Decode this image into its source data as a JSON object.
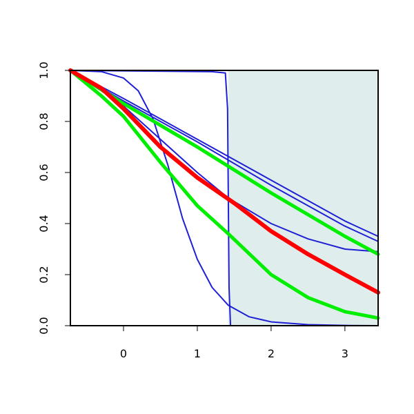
{
  "chart_data": {
    "type": "line",
    "title": "",
    "xlabel": "",
    "ylabel": "",
    "xlim": [
      -0.72,
      3.45
    ],
    "ylim": [
      0,
      1
    ],
    "grid": false,
    "x_ticks": [
      0,
      1,
      2,
      3
    ],
    "x_tick_labels": [
      "0",
      "1",
      "2",
      "3"
    ],
    "y_ticks": [
      0.0,
      0.2,
      0.4,
      0.6,
      0.8,
      1.0
    ],
    "y_tick_labels": [
      "0.0",
      "0.2",
      "0.4",
      "0.6",
      "0.8",
      "1.0"
    ],
    "shaded_region": {
      "x_from": 1.42,
      "x_to": 3.45,
      "color": "#e0eded"
    },
    "series": [
      {
        "color": "#1f1fd6",
        "style": "thin",
        "x": [
          -0.72,
          0.0,
          1.0,
          2.0,
          3.0,
          3.45
        ],
        "y": [
          1.0,
          0.89,
          0.73,
          0.57,
          0.41,
          0.35
        ]
      },
      {
        "color": "#1f1fd6",
        "style": "thin",
        "x": [
          -0.72,
          0.0,
          1.0,
          2.0,
          3.0,
          3.45
        ],
        "y": [
          1.0,
          0.88,
          0.72,
          0.55,
          0.39,
          0.33
        ]
      },
      {
        "color": "#1f1fd6",
        "style": "thin",
        "x": [
          -0.72,
          -0.4,
          0.0,
          0.5,
          1.0,
          1.42,
          2.0,
          2.5,
          3.0,
          3.45
        ],
        "y": [
          1.0,
          0.94,
          0.86,
          0.73,
          0.6,
          0.5,
          0.4,
          0.34,
          0.3,
          0.29
        ]
      },
      {
        "color": "#1f1fd6",
        "style": "thin",
        "x": [
          -0.72,
          -0.3,
          0.0,
          0.2,
          0.4,
          0.6,
          0.8,
          1.0,
          1.2,
          1.42,
          1.7,
          2.0,
          2.5,
          3.0,
          3.45
        ],
        "y": [
          1.0,
          0.995,
          0.97,
          0.92,
          0.81,
          0.63,
          0.42,
          0.26,
          0.15,
          0.08,
          0.035,
          0.015,
          0.004,
          0.001,
          0.0
        ]
      },
      {
        "color": "#1f1fd6",
        "style": "thin",
        "x": [
          -0.72,
          1.2,
          1.38,
          1.41,
          1.43,
          1.45,
          2.0,
          3.45
        ],
        "y": [
          1.0,
          0.995,
          0.99,
          0.85,
          0.15,
          0.0,
          0.0,
          0.0
        ]
      },
      {
        "color": "#00ee00",
        "style": "thick",
        "x": [
          -0.72,
          0.0,
          1.0,
          2.0,
          3.0,
          3.45
        ],
        "y": [
          1.0,
          0.87,
          0.7,
          0.52,
          0.35,
          0.28
        ]
      },
      {
        "color": "#00ee00",
        "style": "thick",
        "x": [
          -0.72,
          -0.3,
          0.0,
          0.5,
          1.0,
          1.42,
          2.0,
          2.5,
          3.0,
          3.45
        ],
        "y": [
          1.0,
          0.9,
          0.82,
          0.64,
          0.47,
          0.36,
          0.2,
          0.11,
          0.055,
          0.03
        ]
      },
      {
        "color": "#ff0000",
        "style": "thicker",
        "x": [
          -0.72,
          -0.3,
          0.0,
          0.5,
          1.0,
          1.5,
          2.0,
          2.5,
          3.0,
          3.45
        ],
        "y": [
          1.0,
          0.93,
          0.85,
          0.7,
          0.58,
          0.48,
          0.37,
          0.28,
          0.2,
          0.13
        ]
      }
    ]
  }
}
